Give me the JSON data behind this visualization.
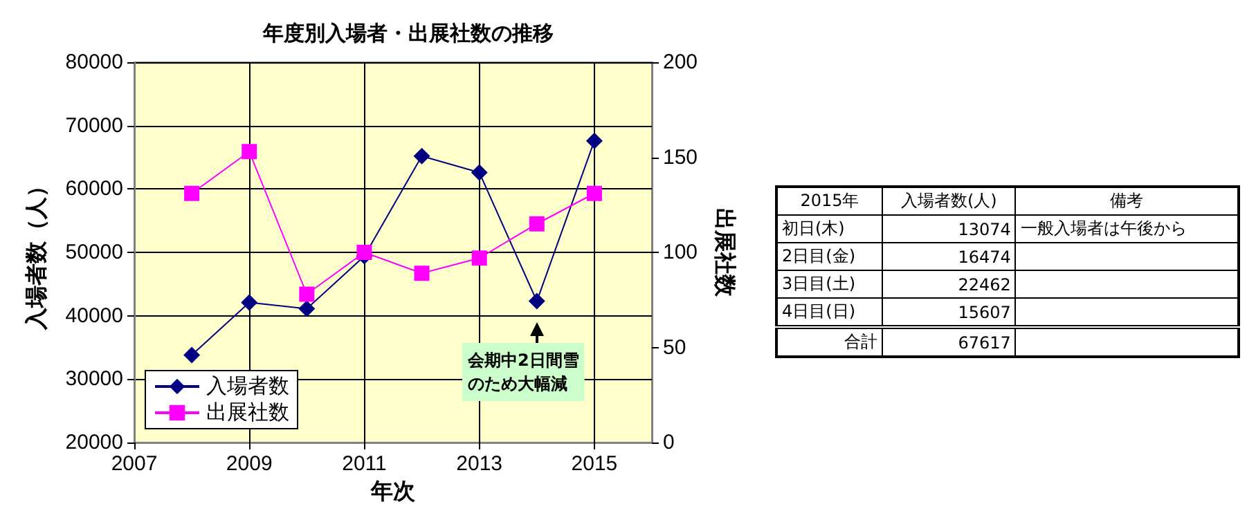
{
  "chart_data": [
    {
      "type": "line",
      "title": "年度別入場者・出展社数の推移",
      "xlabel": "年次",
      "ylabel": "入場者数（人）",
      "y2label": "出展社数",
      "x": [
        2008,
        2009,
        2010,
        2011,
        2012,
        2013,
        2014,
        2015
      ],
      "series": [
        {
          "name": "入場者数",
          "color": "#000080",
          "marker": "diamond",
          "values": [
            33800,
            42100,
            41100,
            49400,
            65200,
            62600,
            42300,
            67600
          ]
        },
        {
          "name": "出展社数",
          "color": "#ff00ff",
          "marker": "square",
          "axis": "y2",
          "values": [
            131,
            153,
            78,
            100,
            89,
            97,
            115,
            131
          ]
        }
      ],
      "xlim": [
        2007,
        2016
      ],
      "xticks": [
        2007,
        2009,
        2011,
        2013,
        2015
      ],
      "ylim": [
        20000,
        80000
      ],
      "yticks": [
        20000,
        30000,
        40000,
        50000,
        60000,
        70000,
        80000
      ],
      "y2lim": [
        0,
        200
      ],
      "y2ticks": [
        0,
        50,
        100,
        150,
        200
      ],
      "grid": true,
      "legend": "bottom left",
      "annotations": [
        "会期中2日間雪のため大幅減"
      ]
    },
    {
      "type": "other",
      "title": "2015年",
      "ylabel": "入場者数(人)",
      "legend_title": "備考",
      "categories": [
        "初日(木)",
        "2日目(金)",
        "3日目(土)",
        "4日目(日)",
        "合計"
      ],
      "values": [
        13074,
        16474,
        22462,
        15607,
        67617
      ],
      "data_labels": true,
      "annotations": [
        {
          "text": "一般入場者は午後から",
          "x": "初日(木)"
        }
      ]
    }
  ]
}
